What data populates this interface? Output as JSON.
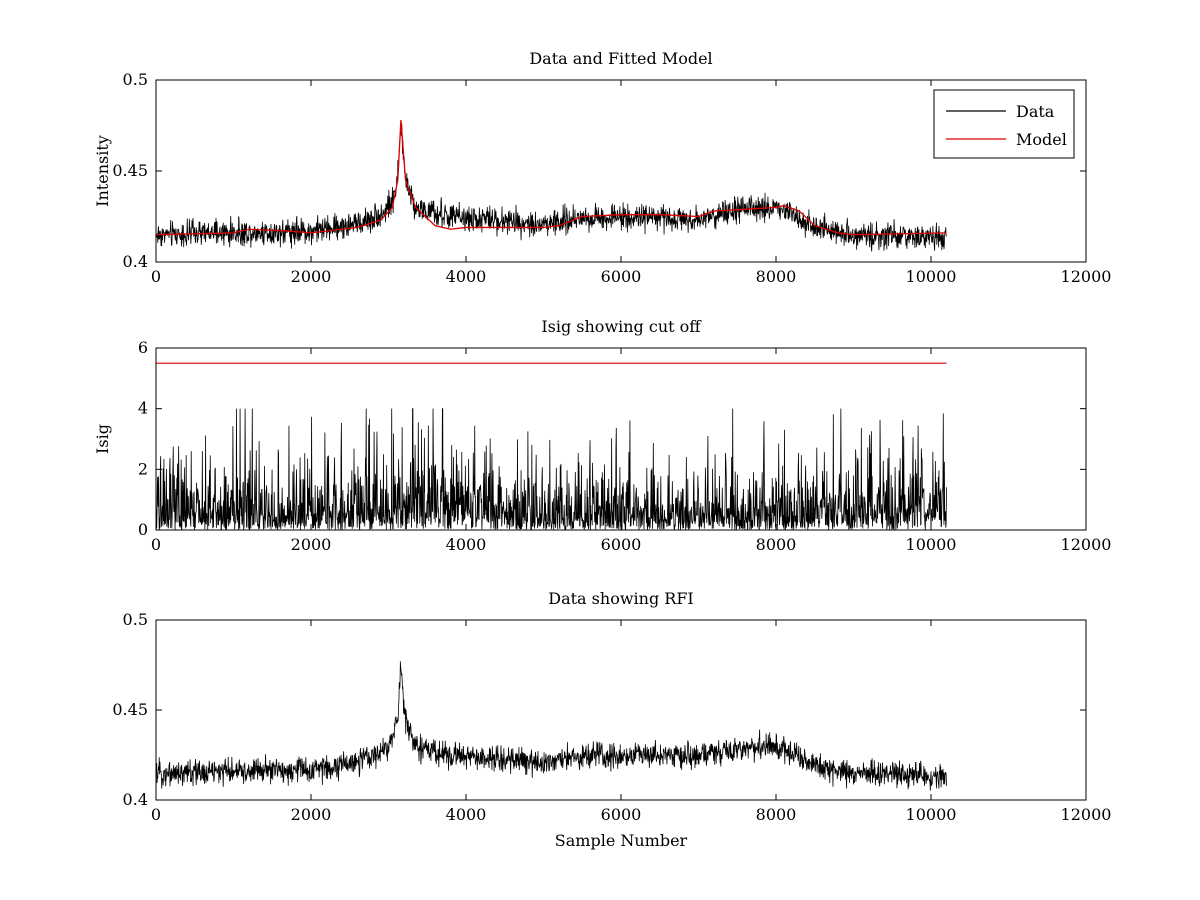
{
  "chart_data": [
    {
      "type": "line",
      "title": "Data and Fitted Model",
      "xlabel": "",
      "ylabel": "Intensity",
      "xlim": [
        0,
        12000
      ],
      "ylim": [
        0.4,
        0.5
      ],
      "xticks": [
        0,
        2000,
        4000,
        6000,
        8000,
        10000,
        12000
      ],
      "yticks": [
        0.4,
        0.45,
        0.5
      ],
      "xtick_labels": [
        "0",
        "2000",
        "4000",
        "6000",
        "8000",
        "10000",
        "12000"
      ],
      "ytick_labels": [
        "0.4",
        "0.45",
        "0.5"
      ],
      "legend_position": "top-right",
      "series": [
        {
          "name": "Data",
          "color": "#000000",
          "style": "noisy",
          "noise_amp": 0.0035,
          "x": [
            0,
            1000,
            2000,
            2600,
            2900,
            3050,
            3120,
            3160,
            3220,
            3350,
            3600,
            4000,
            5000,
            5500,
            6000,
            7000,
            7500,
            8000,
            8200,
            8500,
            9000,
            10200
          ],
          "y": [
            0.415,
            0.416,
            0.417,
            0.421,
            0.426,
            0.433,
            0.447,
            0.475,
            0.445,
            0.43,
            0.426,
            0.424,
            0.421,
            0.424,
            0.425,
            0.424,
            0.428,
            0.43,
            0.427,
            0.419,
            0.415,
            0.413
          ]
        },
        {
          "name": "Model",
          "color": "#dd0000",
          "style": "smooth",
          "x": [
            0,
            1000,
            1200,
            1700,
            2000,
            2600,
            2900,
            3050,
            3120,
            3160,
            3220,
            3350,
            3600,
            3800,
            4000,
            5000,
            5200,
            5500,
            6000,
            6500,
            7000,
            7200,
            8000,
            8100,
            8300,
            8500,
            8800,
            9000,
            10200
          ],
          "y": [
            0.415,
            0.416,
            0.418,
            0.417,
            0.416,
            0.419,
            0.423,
            0.43,
            0.445,
            0.478,
            0.445,
            0.43,
            0.42,
            0.418,
            0.419,
            0.419,
            0.42,
            0.425,
            0.426,
            0.426,
            0.425,
            0.428,
            0.43,
            0.431,
            0.428,
            0.42,
            0.416,
            0.415,
            0.416
          ]
        }
      ]
    },
    {
      "type": "line",
      "title": "Isig showing cut off",
      "xlabel": "",
      "ylabel": "Isig",
      "xlim": [
        0,
        12000
      ],
      "ylim": [
        0,
        6
      ],
      "xticks": [
        0,
        2000,
        4000,
        6000,
        8000,
        10000,
        12000
      ],
      "yticks": [
        0,
        2,
        4,
        6
      ],
      "xtick_labels": [
        "0",
        "2000",
        "4000",
        "6000",
        "8000",
        "10000",
        "12000"
      ],
      "ytick_labels": [
        "0",
        "2",
        "4",
        "6"
      ],
      "series": [
        {
          "color": "#000000",
          "style": "spiky",
          "x": [
            0,
            1000,
            2000,
            3000,
            3500,
            3800,
            4100,
            4500,
            5000,
            6000,
            7000,
            8000,
            9000,
            9800,
            10200
          ],
          "y": [
            0.8,
            0.75,
            0.75,
            0.85,
            1.1,
            1.2,
            1.0,
            0.8,
            0.7,
            0.68,
            0.68,
            0.7,
            0.75,
            0.9,
            0.95
          ]
        },
        {
          "color": "#dd0000",
          "style": "line",
          "x": [
            0,
            10200
          ],
          "y": [
            5.5,
            5.5
          ]
        }
      ]
    },
    {
      "type": "line",
      "title": "Data showing RFI",
      "xlabel": "Sample Number",
      "ylabel": "",
      "xlim": [
        0,
        12000
      ],
      "ylim": [
        0.4,
        0.5
      ],
      "xticks": [
        0,
        2000,
        4000,
        6000,
        8000,
        10000,
        12000
      ],
      "yticks": [
        0.4,
        0.45,
        0.5
      ],
      "xtick_labels": [
        "0",
        "2000",
        "4000",
        "6000",
        "8000",
        "10000",
        "12000"
      ],
      "ytick_labels": [
        "0.4",
        "0.45",
        "0.5"
      ],
      "series": [
        {
          "color": "#000000",
          "style": "noisy",
          "noise_amp": 0.0035,
          "x": [
            0,
            1000,
            2000,
            2600,
            2900,
            3050,
            3120,
            3160,
            3220,
            3350,
            3600,
            4000,
            5000,
            5500,
            6000,
            7000,
            7500,
            8000,
            8200,
            8500,
            9000,
            10200
          ],
          "y": [
            0.415,
            0.416,
            0.417,
            0.421,
            0.426,
            0.433,
            0.447,
            0.475,
            0.445,
            0.43,
            0.426,
            0.424,
            0.421,
            0.424,
            0.425,
            0.424,
            0.428,
            0.43,
            0.427,
            0.419,
            0.415,
            0.413
          ]
        }
      ]
    }
  ]
}
